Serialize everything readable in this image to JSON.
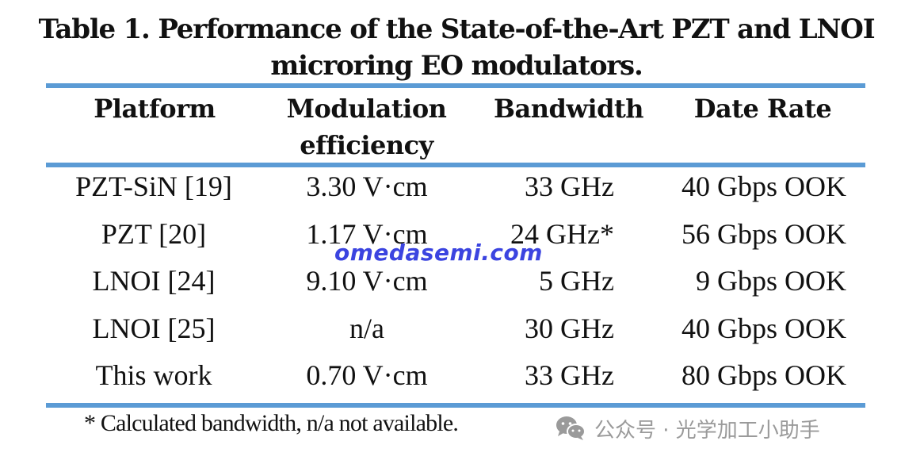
{
  "caption": {
    "line1": "Table 1.  Performance of the State-of-the-Art PZT and LNOI",
    "line2": "microring EO modulators."
  },
  "table": {
    "headers": [
      "Platform",
      "Modulation efficiency",
      "Bandwidth",
      "Date Rate"
    ],
    "header_lines": {
      "platform": "Platform",
      "modulation_1": "Modulation",
      "modulation_2": "efficiency",
      "bandwidth": "Bandwidth",
      "date_rate": "Date Rate"
    },
    "rows": [
      [
        "PZT-SiN [19]",
        "3.30 V·cm",
        "33 GHz",
        "40 Gbps OOK"
      ],
      [
        "PZT [20]",
        "1.17 V·cm",
        "24 GHz*",
        "56 Gbps OOK"
      ],
      [
        "LNOI [24]",
        "9.10 V·cm",
        "5 GHz",
        "9 Gbps OOK"
      ],
      [
        "LNOI [25]",
        "n/a",
        "30 GHz",
        "40 Gbps OOK"
      ],
      [
        "This work",
        "0.70 V·cm",
        "33 GHz",
        "80 Gbps OOK"
      ]
    ],
    "rule_color": "#5b9bd5"
  },
  "footnote": "* Calculated bandwidth, n/a not available.",
  "watermark": "omedasemi.com",
  "wechat_label": "公众号 · 光学加工小助手",
  "wechat_icon": "wechat-icon"
}
